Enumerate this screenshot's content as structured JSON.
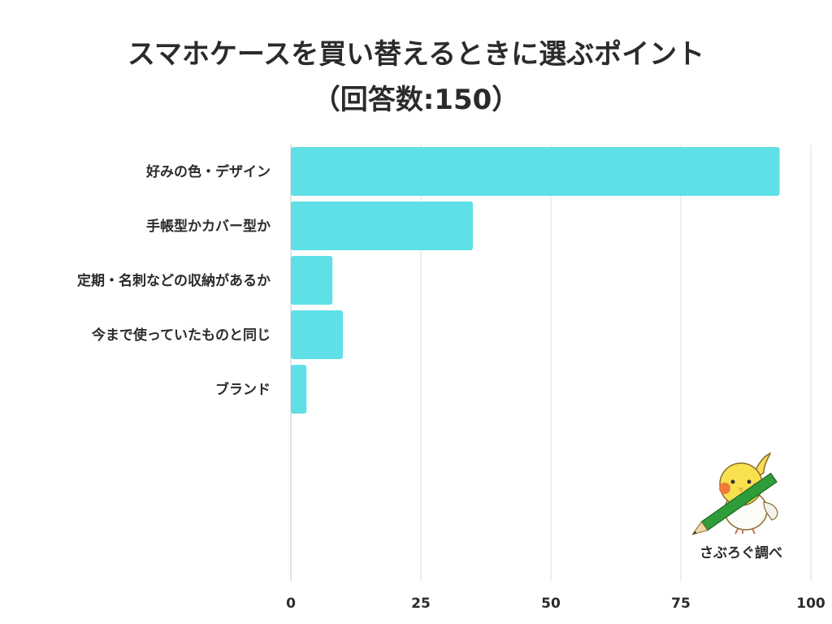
{
  "chart_data": {
    "type": "bar",
    "orientation": "horizontal",
    "title": "スマホケースを買い替えるときに選ぶポイント",
    "subtitle": "（回答数:150）",
    "categories": [
      "好みの色・デザイン",
      "手帳型かカバー型か",
      "定期・名刺などの収納があるか",
      "今まで使っていたものと同じ",
      "ブランド"
    ],
    "values": [
      94,
      35,
      8,
      10,
      3
    ],
    "xlim": [
      0,
      100
    ],
    "xticks": [
      "0",
      "25",
      "50",
      "75",
      "100"
    ],
    "grid": "vertical",
    "bar_color": "#5ee0e6"
  },
  "credit": {
    "label": "さぶろぐ調べ",
    "icon": "cockatiel-with-pencil-icon"
  }
}
